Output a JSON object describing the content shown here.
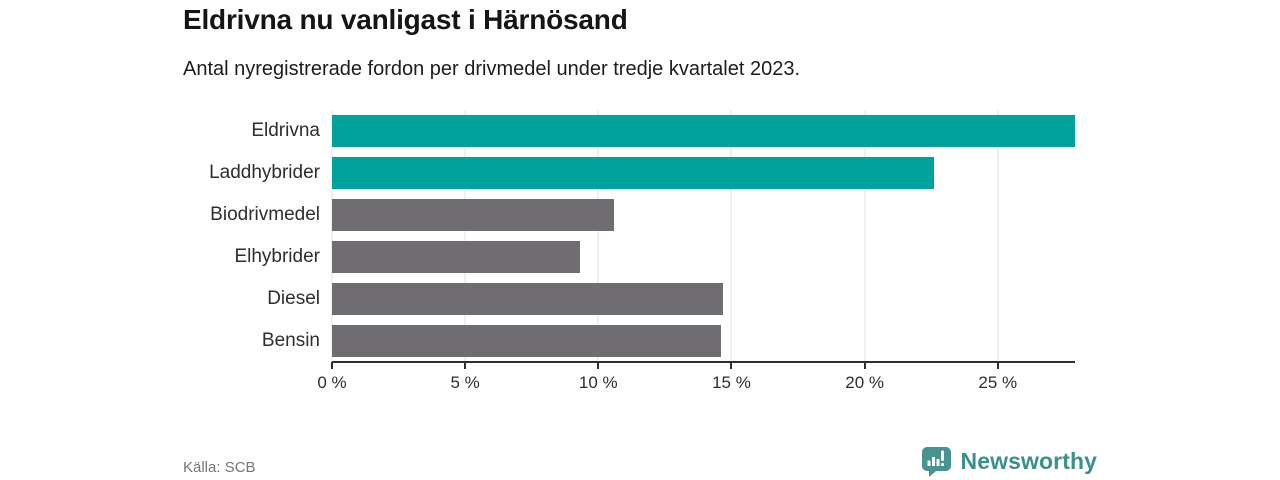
{
  "header": {
    "title": "Eldrivna nu vanligast i Härnösand",
    "subtitle": "Antal nyregistrerade fordon per drivmedel under tredje kvartalet 2023."
  },
  "chart_data": {
    "type": "bar",
    "orientation": "horizontal",
    "title": "Eldrivna nu vanligast i Härnösand",
    "subtitle": "Antal nyregistrerade fordon per drivmedel under tredje kvartalet 2023.",
    "categories": [
      "Eldrivna",
      "Laddhybrider",
      "Biodrivmedel",
      "Elhybrider",
      "Diesel",
      "Bensin"
    ],
    "values": [
      27.9,
      22.6,
      10.6,
      9.3,
      14.7,
      14.6
    ],
    "unit": "%",
    "bar_colors": [
      "#00a39b",
      "#00a39b",
      "#6f6d72",
      "#6f6d72",
      "#6f6d72",
      "#6f6d72"
    ],
    "highlight_color": "#00a39b",
    "default_color": "#6f6d72",
    "xlim": [
      0,
      27.9
    ],
    "x_ticks": [
      {
        "value": 0,
        "label": "0 %"
      },
      {
        "value": 5,
        "label": "5 %"
      },
      {
        "value": 10,
        "label": "10 %"
      },
      {
        "value": 15,
        "label": "15 %"
      },
      {
        "value": 20,
        "label": "20 %"
      },
      {
        "value": 25,
        "label": "25 %"
      }
    ],
    "grid": true,
    "legend": false,
    "xlabel": "",
    "ylabel": ""
  },
  "footer": {
    "source": "Källa: SCB",
    "brand": "Newsworthy"
  },
  "colors": {
    "accent_teal": "#00a39b",
    "bar_gray": "#6f6d72",
    "brand_teal": "#3a908b",
    "axis": "#2f2f2f",
    "gridline": "#e1e1e1"
  }
}
